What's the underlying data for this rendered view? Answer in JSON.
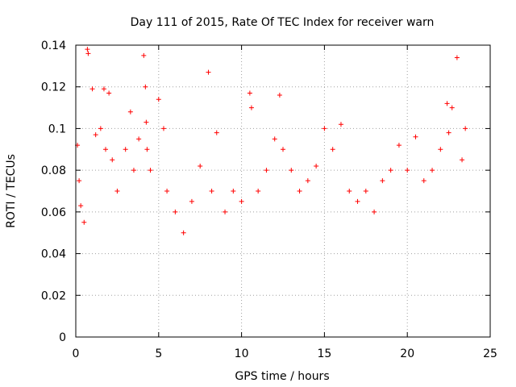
{
  "chart_data": {
    "type": "scatter",
    "title": "Day 111 of 2015, Rate Of TEC Index for receiver warn",
    "xlabel": "GPS time / hours",
    "ylabel": "ROTI / TECUs",
    "xlim": [
      0,
      25
    ],
    "ylim": [
      0,
      0.14
    ],
    "xticks": [
      "0",
      "5",
      "10",
      "15",
      "20",
      "25"
    ],
    "yticks": [
      "0",
      "0.02",
      "0.04",
      "0.06",
      "0.08",
      "0.1",
      "0.12",
      "0.14"
    ],
    "grid": true,
    "marker": "+",
    "color": "#ff0000",
    "series": [
      {
        "x": [
          0.1,
          0.2,
          0.3,
          0.5,
          0.7,
          0.75,
          1.0,
          1.2,
          1.5,
          1.7,
          1.8,
          2.0,
          2.2,
          2.5,
          3.0,
          3.3,
          3.5,
          3.8,
          4.1,
          4.2,
          4.25,
          4.3,
          4.5,
          5.0,
          5.3,
          5.5,
          6.0,
          6.5,
          7.0,
          7.5,
          8.0,
          8.2,
          8.5,
          9.0,
          9.5,
          10.0,
          10.5,
          10.6,
          11.0,
          11.5,
          12.0,
          12.3,
          12.5,
          13.0,
          13.5,
          14.0,
          14.5,
          15.0,
          15.5,
          16.0,
          16.5,
          17.0,
          17.5,
          18.0,
          18.5,
          19.0,
          19.5,
          20.0,
          20.5,
          21.0,
          21.5,
          22.0,
          22.4,
          22.5,
          22.7,
          23.0,
          23.3,
          23.5
        ],
        "y": [
          0.092,
          0.075,
          0.063,
          0.055,
          0.138,
          0.136,
          0.119,
          0.097,
          0.1,
          0.119,
          0.09,
          0.117,
          0.085,
          0.07,
          0.09,
          0.108,
          0.08,
          0.095,
          0.135,
          0.12,
          0.103,
          0.09,
          0.08,
          0.114,
          0.1,
          0.07,
          0.06,
          0.05,
          0.065,
          0.082,
          0.127,
          0.07,
          0.098,
          0.06,
          0.07,
          0.065,
          0.117,
          0.11,
          0.07,
          0.08,
          0.095,
          0.116,
          0.09,
          0.08,
          0.07,
          0.075,
          0.082,
          0.1,
          0.09,
          0.102,
          0.07,
          0.065,
          0.07,
          0.06,
          0.075,
          0.08,
          0.092,
          0.08,
          0.096,
          0.075,
          0.08,
          0.09,
          0.112,
          0.098,
          0.11,
          0.134,
          0.085,
          0.1
        ]
      }
    ]
  }
}
